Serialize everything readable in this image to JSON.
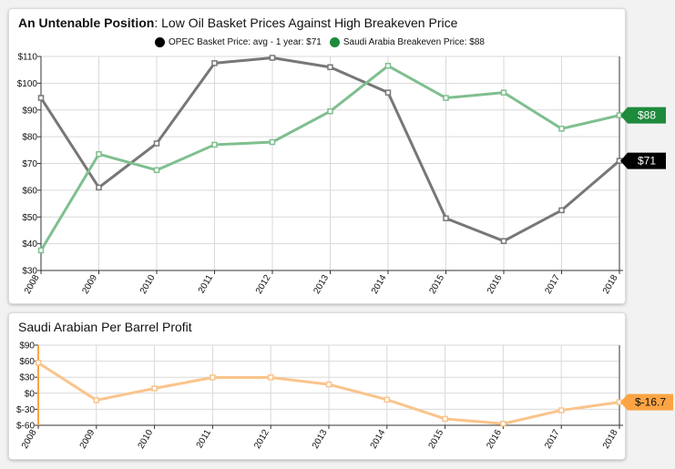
{
  "chart_data": [
    {
      "type": "line",
      "title_bold": "An Untenable Position",
      "title_rest": ": Low Oil Basket Prices Against High Breakeven Price",
      "categories": [
        "2008",
        "2009",
        "2010",
        "2011",
        "2012",
        "2013",
        "2014",
        "2015",
        "2016",
        "2017",
        "2018"
      ],
      "series": [
        {
          "name": "OPEC Basket Price: avg - 1 year: $71",
          "color": "#777777",
          "legend_color": "#000000",
          "values": [
            94.5,
            61,
            77.5,
            107.5,
            109.5,
            106,
            96.5,
            49.5,
            41,
            52.5,
            71
          ]
        },
        {
          "name": "Saudi Arabia Breakeven Price: $88",
          "color": "#7fbf8f",
          "legend_color": "#1e8a3c",
          "values": [
            37.5,
            73.5,
            67.5,
            77,
            78,
            89.5,
            106.5,
            94.5,
            96.5,
            83,
            88
          ]
        }
      ],
      "ylim": [
        30,
        110
      ],
      "yticks": [
        30,
        40,
        50,
        60,
        70,
        80,
        90,
        100,
        110
      ],
      "ytick_labels": [
        "$30",
        "$40",
        "$50",
        "$60",
        "$70",
        "$80",
        "$90",
        "$100",
        "$110"
      ],
      "end_labels": [
        {
          "text": "$88",
          "value": 88,
          "color": "#1e8a3c"
        },
        {
          "text": "$71",
          "value": 71,
          "color": "#000000"
        }
      ],
      "grid": true
    },
    {
      "type": "line",
      "title": "Saudi Arabian Per Barrel Profit",
      "categories": [
        "2008",
        "2009",
        "2010",
        "2011",
        "2012",
        "2013",
        "2014",
        "2015",
        "2016",
        "2017",
        "2018"
      ],
      "series": [
        {
          "name": "Profit",
          "color": "#fac48c",
          "values": [
            57,
            -13,
            9,
            29.5,
            29.5,
            16.5,
            -12,
            -48,
            -57,
            -32,
            -16.7
          ]
        }
      ],
      "ylim": [
        -60,
        90
      ],
      "yticks": [
        -60,
        -30,
        0,
        30,
        60,
        90
      ],
      "ytick_labels": [
        "$-60",
        "$-30",
        "$0",
        "$30",
        "$60",
        "$90"
      ],
      "end_labels": [
        {
          "text": "$-16.7",
          "value": -16.7,
          "color": "#fca443"
        }
      ],
      "grid": true
    }
  ]
}
